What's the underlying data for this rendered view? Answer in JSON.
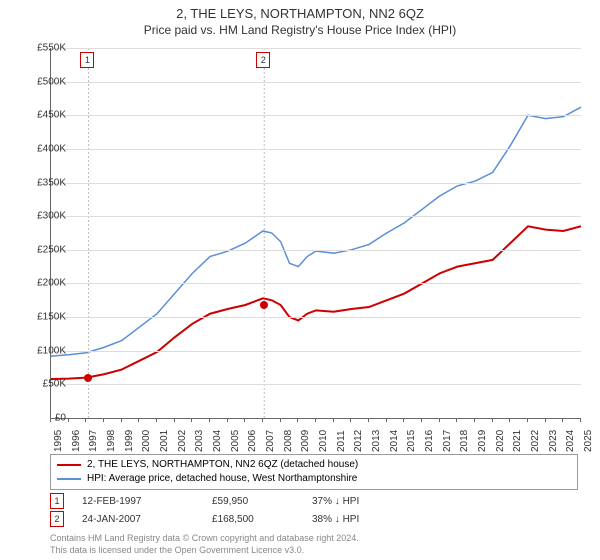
{
  "title": "2, THE LEYS, NORTHAMPTON, NN2 6QZ",
  "subtitle": "Price paid vs. HM Land Registry's House Price Index (HPI)",
  "chart": {
    "type": "line",
    "background_color": "#ffffff",
    "grid_color": "#dddddd",
    "axis_color": "#666666",
    "ylim": [
      0,
      550000
    ],
    "ytick_step": 50000,
    "ytick_labels": [
      "£0",
      "£50K",
      "£100K",
      "£150K",
      "£200K",
      "£250K",
      "£300K",
      "£350K",
      "£400K",
      "£450K",
      "£500K",
      "£550K"
    ],
    "xlim": [
      1995,
      2025
    ],
    "xtick_step": 1,
    "xtick_labels": [
      "1995",
      "1996",
      "1997",
      "1998",
      "1999",
      "2000",
      "2001",
      "2002",
      "2003",
      "2004",
      "2005",
      "2006",
      "2007",
      "2008",
      "2009",
      "2010",
      "2011",
      "2012",
      "2013",
      "2014",
      "2015",
      "2016",
      "2017",
      "2018",
      "2019",
      "2020",
      "2021",
      "2022",
      "2023",
      "2024",
      "2025"
    ],
    "series": [
      {
        "name": "property",
        "label": "2, THE LEYS, NORTHAMPTON, NN2 6QZ (detached house)",
        "color": "#cc0000",
        "line_width": 2,
        "points": [
          [
            1995,
            58000
          ],
          [
            1996,
            58500
          ],
          [
            1997,
            60000
          ],
          [
            1998,
            65000
          ],
          [
            1999,
            72000
          ],
          [
            2000,
            85000
          ],
          [
            2001,
            98000
          ],
          [
            2002,
            120000
          ],
          [
            2003,
            140000
          ],
          [
            2004,
            155000
          ],
          [
            2005,
            162000
          ],
          [
            2006,
            168000
          ],
          [
            2007,
            178000
          ],
          [
            2007.5,
            175000
          ],
          [
            2008,
            168000
          ],
          [
            2008.5,
            150000
          ],
          [
            2009,
            145000
          ],
          [
            2009.5,
            155000
          ],
          [
            2010,
            160000
          ],
          [
            2011,
            158000
          ],
          [
            2012,
            162000
          ],
          [
            2013,
            165000
          ],
          [
            2014,
            175000
          ],
          [
            2015,
            185000
          ],
          [
            2016,
            200000
          ],
          [
            2017,
            215000
          ],
          [
            2018,
            225000
          ],
          [
            2019,
            230000
          ],
          [
            2020,
            235000
          ],
          [
            2021,
            260000
          ],
          [
            2022,
            285000
          ],
          [
            2023,
            280000
          ],
          [
            2024,
            278000
          ],
          [
            2025,
            285000
          ]
        ]
      },
      {
        "name": "hpi",
        "label": "HPI: Average price, detached house, West Northamptonshire",
        "color": "#5b8fd6",
        "line_width": 1.5,
        "points": [
          [
            1995,
            92000
          ],
          [
            1996,
            94000
          ],
          [
            1997,
            97000
          ],
          [
            1998,
            105000
          ],
          [
            1999,
            115000
          ],
          [
            2000,
            135000
          ],
          [
            2001,
            155000
          ],
          [
            2002,
            185000
          ],
          [
            2003,
            215000
          ],
          [
            2004,
            240000
          ],
          [
            2005,
            248000
          ],
          [
            2006,
            260000
          ],
          [
            2007,
            278000
          ],
          [
            2007.5,
            275000
          ],
          [
            2008,
            262000
          ],
          [
            2008.5,
            230000
          ],
          [
            2009,
            225000
          ],
          [
            2009.5,
            240000
          ],
          [
            2010,
            248000
          ],
          [
            2011,
            245000
          ],
          [
            2012,
            250000
          ],
          [
            2013,
            258000
          ],
          [
            2014,
            275000
          ],
          [
            2015,
            290000
          ],
          [
            2016,
            310000
          ],
          [
            2017,
            330000
          ],
          [
            2018,
            345000
          ],
          [
            2019,
            352000
          ],
          [
            2020,
            365000
          ],
          [
            2021,
            405000
          ],
          [
            2022,
            450000
          ],
          [
            2023,
            445000
          ],
          [
            2024,
            448000
          ],
          [
            2025,
            462000
          ]
        ]
      }
    ],
    "sale_markers": [
      {
        "n": "1",
        "year": 1997.12,
        "price": 59950,
        "color": "#cc0000"
      },
      {
        "n": "2",
        "year": 2007.07,
        "price": 168500,
        "color": "#cc0000"
      }
    ]
  },
  "legend": {
    "items": [
      {
        "color": "#cc0000",
        "label": "2, THE LEYS, NORTHAMPTON, NN2 6QZ (detached house)"
      },
      {
        "color": "#5b8fd6",
        "label": "HPI: Average price, detached house, West Northamptonshire"
      }
    ]
  },
  "sales": [
    {
      "n": "1",
      "date": "12-FEB-1997",
      "price": "£59,950",
      "pct": "37% ↓ HPI",
      "marker_color": "#cc0000"
    },
    {
      "n": "2",
      "date": "24-JAN-2007",
      "price": "£168,500",
      "pct": "38% ↓ HPI",
      "marker_color": "#cc0000"
    }
  ],
  "footer": {
    "line1": "Contains HM Land Registry data © Crown copyright and database right 2024.",
    "line2": "This data is licensed under the Open Government Licence v3.0."
  }
}
